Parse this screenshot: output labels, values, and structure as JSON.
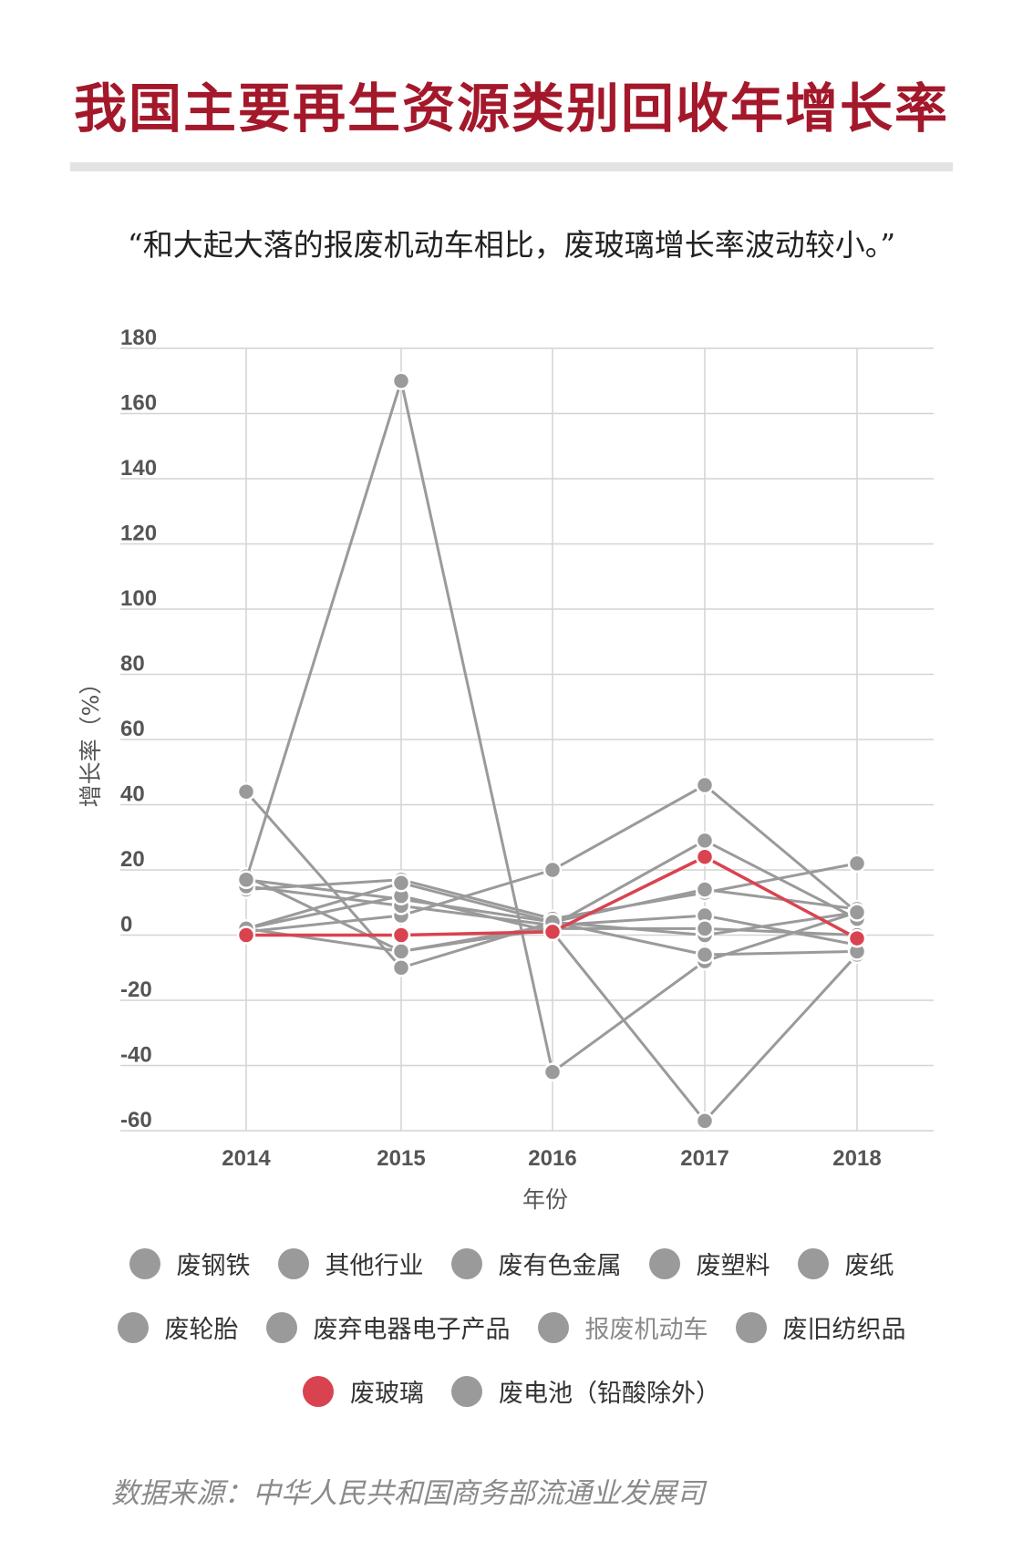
{
  "header": {
    "title": "我国主要再生资源类别回收年增长率",
    "subtitle": "“和大起大落的报废机动车相比，废玻璃增长率波动较小。”"
  },
  "colors": {
    "title": "#a3182a",
    "series_default": "#9a9a9a",
    "highlight": "#d9434f",
    "grid": "#d4d4d4"
  },
  "legend": {
    "row1": [
      "废钢铁",
      "其他行业",
      "废有色金属",
      "废塑料",
      "废纸"
    ],
    "row2": [
      "废轮胎",
      "废弃电器电子产品",
      "报废机动车",
      "废旧纺织品"
    ],
    "row3": [
      "废玻璃",
      "废电池（铅酸除外）"
    ]
  },
  "source": "数据来源：中华人民共和国商务部流通业发展司",
  "chart_data": {
    "type": "line",
    "title": "",
    "xlabel": "年份",
    "ylabel": "增长率（%）",
    "categories": [
      "2014",
      "2015",
      "2016",
      "2017",
      "2018"
    ],
    "yticks": [
      180,
      160,
      140,
      120,
      100,
      80,
      60,
      40,
      20,
      0,
      -20,
      -40,
      -60
    ],
    "ylim": [
      -60,
      180
    ],
    "grid": true,
    "legend_position": "bottom",
    "highlight_series": "废玻璃",
    "series": [
      {
        "name": "废钢铁",
        "values": [
          18,
          -5,
          3,
          6,
          -3
        ]
      },
      {
        "name": "其他行业",
        "values": [
          14,
          17,
          5,
          13,
          22
        ]
      },
      {
        "name": "废有色金属",
        "values": [
          44,
          -10,
          4,
          0,
          7
        ]
      },
      {
        "name": "废塑料",
        "values": [
          17,
          11,
          4,
          14,
          8
        ]
      },
      {
        "name": "废纸",
        "values": [
          2,
          -5,
          2,
          2,
          0
        ]
      },
      {
        "name": "废轮胎",
        "values": [
          1,
          6,
          20,
          46,
          7
        ]
      },
      {
        "name": "废弃电器电子产品",
        "values": [
          15,
          9,
          3,
          29,
          5
        ]
      },
      {
        "name": "报废机动车",
        "values": [
          17,
          170,
          -42,
          -8,
          7
        ]
      },
      {
        "name": "废旧纺织品",
        "values": [
          2,
          12,
          1,
          -57,
          -6
        ]
      },
      {
        "name": "废玻璃",
        "values": [
          0,
          0,
          1,
          24,
          -1
        ]
      },
      {
        "name": "废电池（铅酸除外）",
        "values": [
          2,
          16,
          4,
          -6,
          -5
        ]
      }
    ]
  }
}
